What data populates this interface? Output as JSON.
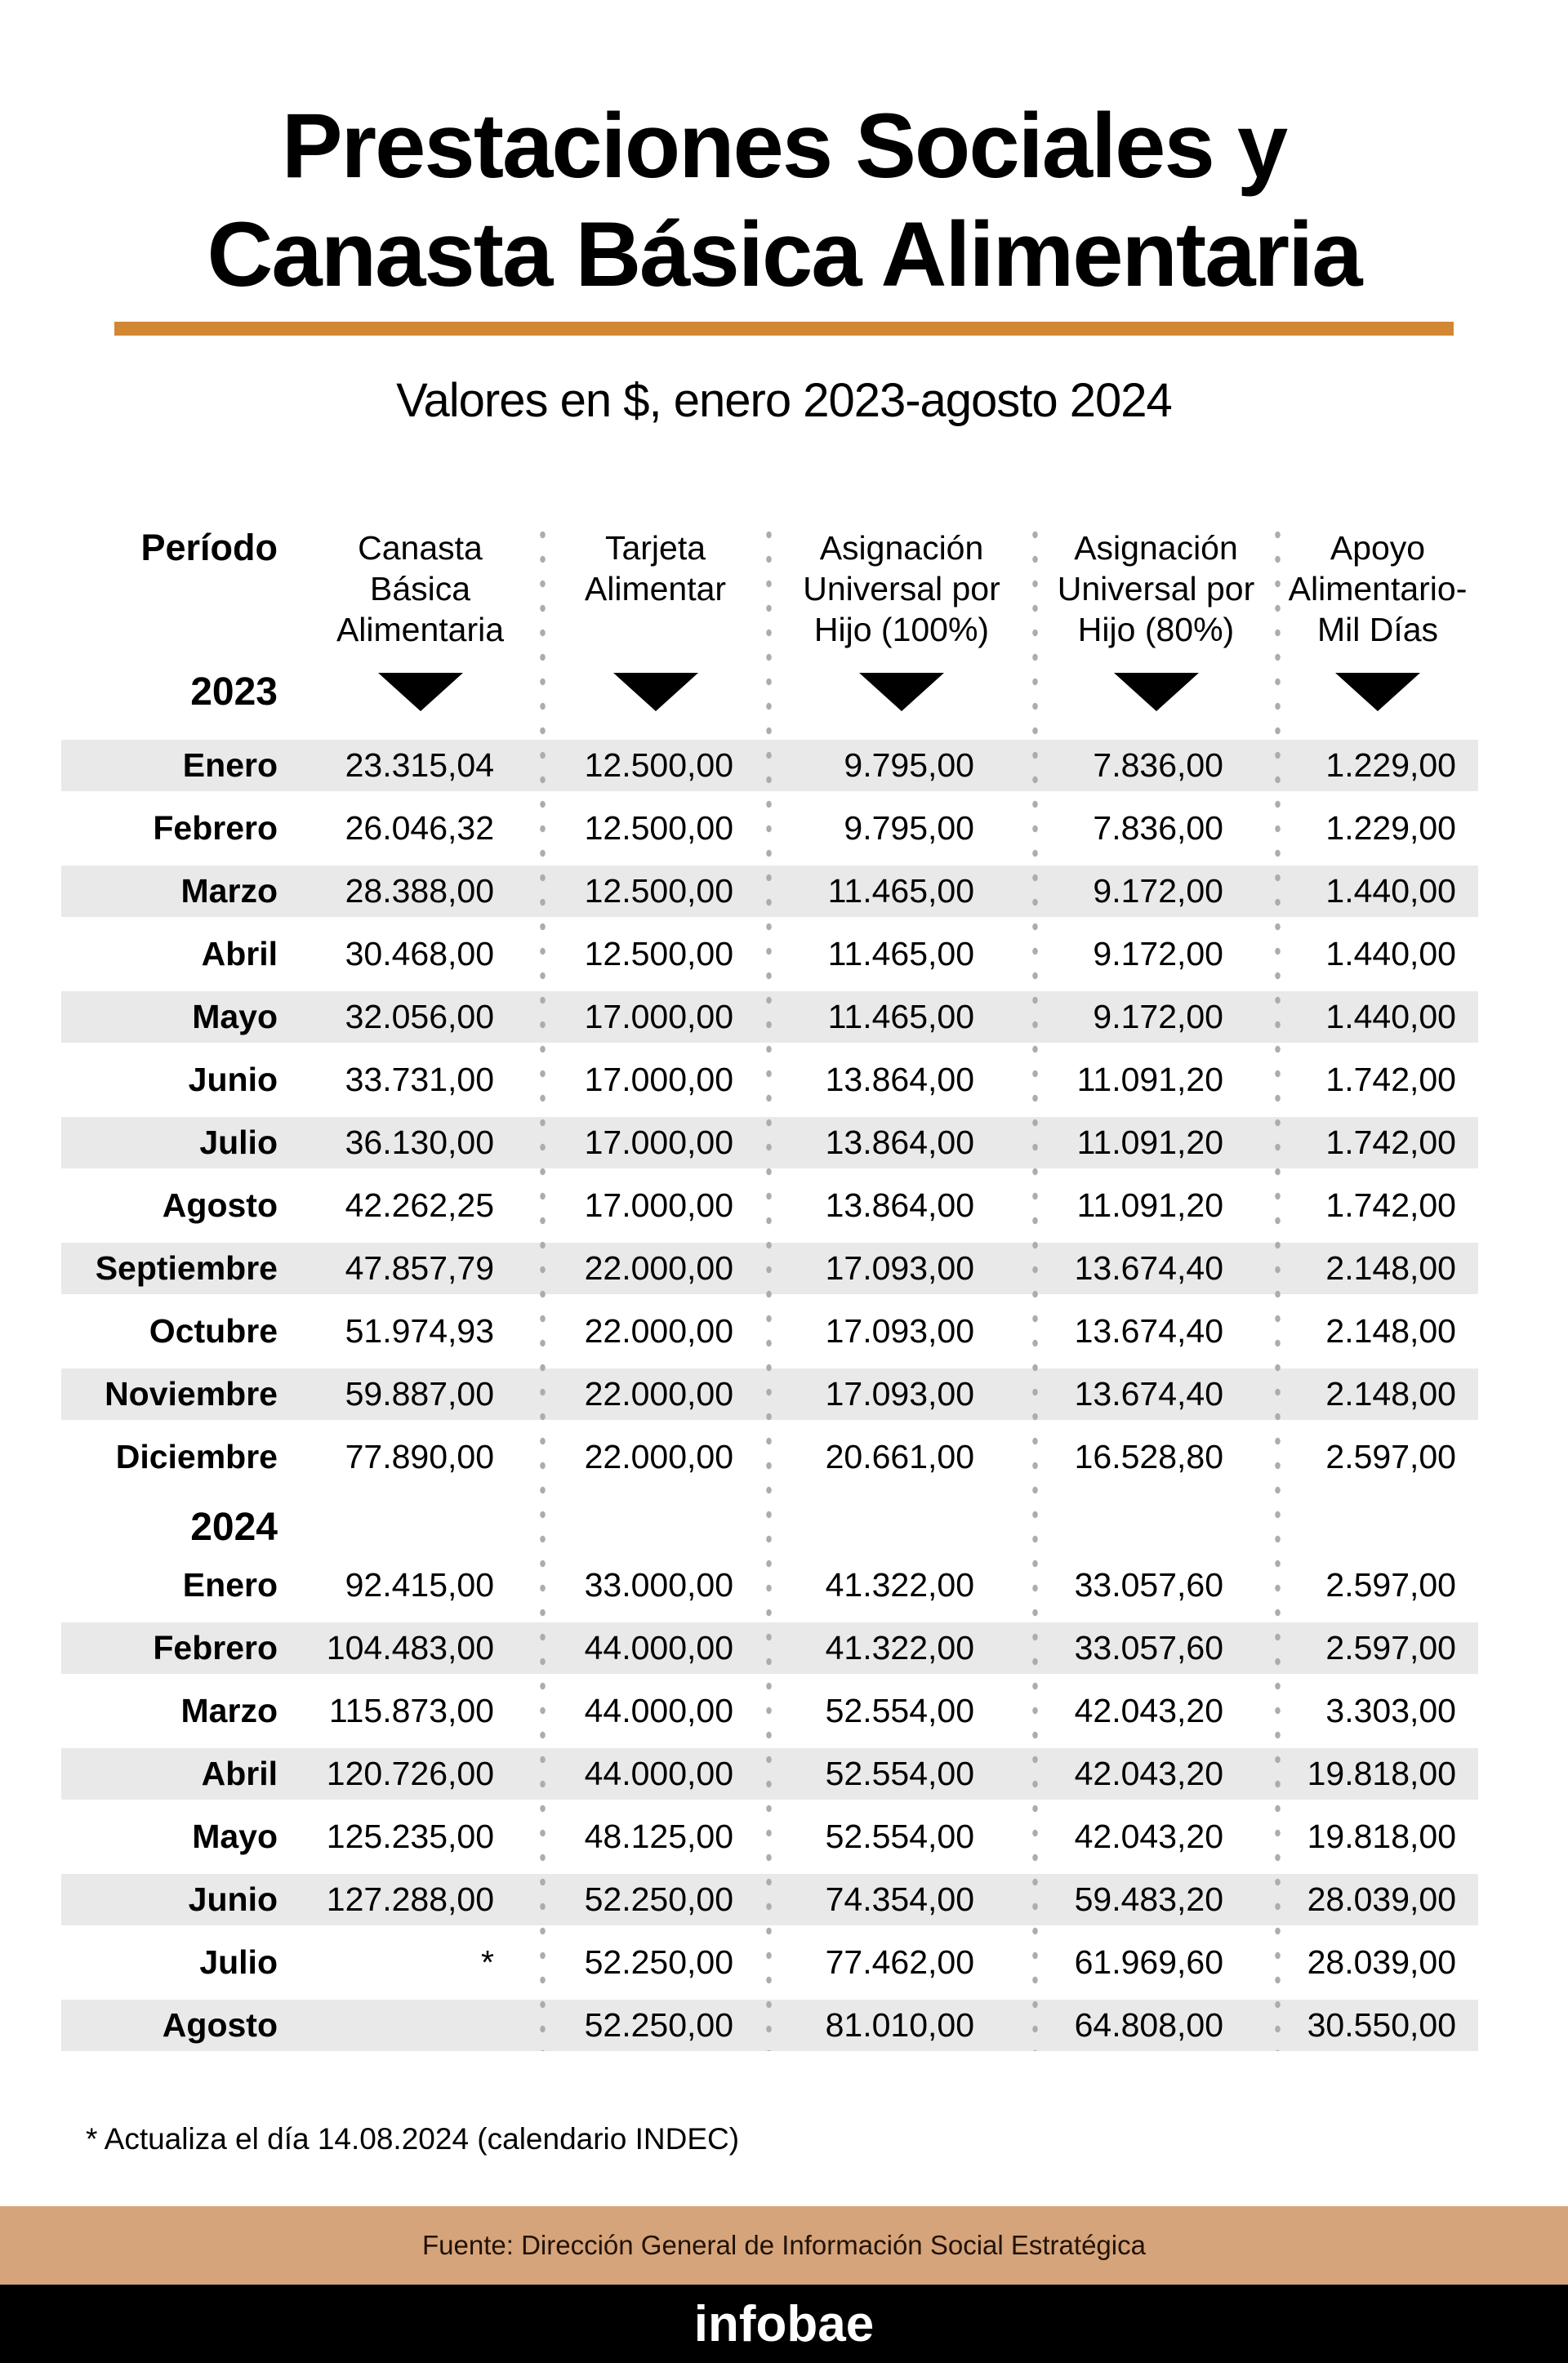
{
  "title": {
    "line1": "Prestaciones Sociales y",
    "line2": "Canasta Básica Alimentaria"
  },
  "subtitle": "Valores en $, enero 2023-agosto 2024",
  "footnote": "* Actualiza el día 14.08.2024 (calendario INDEC)",
  "source": "Fuente: Dirección General de Información Social Estratégica",
  "brand": "infobae",
  "colors": {
    "accent_bar": "#d28732",
    "row_stripe": "#e9e9e9",
    "separator_dots": "#acacac",
    "source_band": "#d6a47a",
    "brand_band": "#000000"
  },
  "chart_data": {
    "type": "table",
    "title": "Prestaciones Sociales y Canasta Básica Alimentaria",
    "subtitle": "Valores en $, enero 2023-agosto 2024",
    "row_header": "Período",
    "columns": [
      "Canasta Básica Alimentaria",
      "Tarjeta Alimentar",
      "Asignación Universal por Hijo (100%)",
      "Asignación Universal por Hijo (80%)",
      "Apoyo Alimentario-Mil Días"
    ],
    "column_lines": [
      [
        "Canasta",
        "Básica",
        "Alimentaria"
      ],
      [
        "Tarjeta",
        "Alimentar"
      ],
      [
        "Asignación",
        "Universal por",
        "Hijo (100%)"
      ],
      [
        "Asignación",
        "Universal por",
        "Hijo (80%)"
      ],
      [
        "Apoyo",
        "Alimentario-",
        "Mil Días"
      ]
    ],
    "sections": [
      {
        "year": "2023",
        "rows": [
          {
            "month": "Enero",
            "values": [
              "23.315,04",
              "12.500,00",
              "9.795,00",
              "7.836,00",
              "1.229,00"
            ],
            "shaded": true
          },
          {
            "month": "Febrero",
            "values": [
              "26.046,32",
              "12.500,00",
              "9.795,00",
              "7.836,00",
              "1.229,00"
            ],
            "shaded": false
          },
          {
            "month": "Marzo",
            "values": [
              "28.388,00",
              "12.500,00",
              "11.465,00",
              "9.172,00",
              "1.440,00"
            ],
            "shaded": true
          },
          {
            "month": "Abril",
            "values": [
              "30.468,00",
              "12.500,00",
              "11.465,00",
              "9.172,00",
              "1.440,00"
            ],
            "shaded": false
          },
          {
            "month": "Mayo",
            "values": [
              "32.056,00",
              "17.000,00",
              "11.465,00",
              "9.172,00",
              "1.440,00"
            ],
            "shaded": true
          },
          {
            "month": "Junio",
            "values": [
              "33.731,00",
              "17.000,00",
              "13.864,00",
              "11.091,20",
              "1.742,00"
            ],
            "shaded": false
          },
          {
            "month": "Julio",
            "values": [
              "36.130,00",
              "17.000,00",
              "13.864,00",
              "11.091,20",
              "1.742,00"
            ],
            "shaded": true
          },
          {
            "month": "Agosto",
            "values": [
              "42.262,25",
              "17.000,00",
              "13.864,00",
              "11.091,20",
              "1.742,00"
            ],
            "shaded": false
          },
          {
            "month": "Septiembre",
            "values": [
              "47.857,79",
              "22.000,00",
              "17.093,00",
              "13.674,40",
              "2.148,00"
            ],
            "shaded": true
          },
          {
            "month": "Octubre",
            "values": [
              "51.974,93",
              "22.000,00",
              "17.093,00",
              "13.674,40",
              "2.148,00"
            ],
            "shaded": false
          },
          {
            "month": "Noviembre",
            "values": [
              "59.887,00",
              "22.000,00",
              "17.093,00",
              "13.674,40",
              "2.148,00"
            ],
            "shaded": true
          },
          {
            "month": "Diciembre",
            "values": [
              "77.890,00",
              "22.000,00",
              "20.661,00",
              "16.528,80",
              "2.597,00"
            ],
            "shaded": false
          }
        ]
      },
      {
        "year": "2024",
        "rows": [
          {
            "month": "Enero",
            "values": [
              "92.415,00",
              "33.000,00",
              "41.322,00",
              "33.057,60",
              "2.597,00"
            ],
            "shaded": false
          },
          {
            "month": "Febrero",
            "values": [
              "104.483,00",
              "44.000,00",
              "41.322,00",
              "33.057,60",
              "2.597,00"
            ],
            "shaded": true
          },
          {
            "month": "Marzo",
            "values": [
              "115.873,00",
              "44.000,00",
              "52.554,00",
              "42.043,20",
              "3.303,00"
            ],
            "shaded": false
          },
          {
            "month": "Abril",
            "values": [
              "120.726,00",
              "44.000,00",
              "52.554,00",
              "42.043,20",
              "19.818,00"
            ],
            "shaded": true
          },
          {
            "month": "Mayo",
            "values": [
              "125.235,00",
              "48.125,00",
              "52.554,00",
              "42.043,20",
              "19.818,00"
            ],
            "shaded": false
          },
          {
            "month": "Junio",
            "values": [
              "127.288,00",
              "52.250,00",
              "74.354,00",
              "59.483,20",
              "28.039,00"
            ],
            "shaded": true
          },
          {
            "month": "Julio",
            "values": [
              "*",
              "52.250,00",
              "77.462,00",
              "61.969,60",
              "28.039,00"
            ],
            "shaded": false
          },
          {
            "month": "Agosto",
            "values": [
              "",
              "52.250,00",
              "81.010,00",
              "64.808,00",
              "30.550,00"
            ],
            "shaded": true
          }
        ]
      }
    ]
  }
}
